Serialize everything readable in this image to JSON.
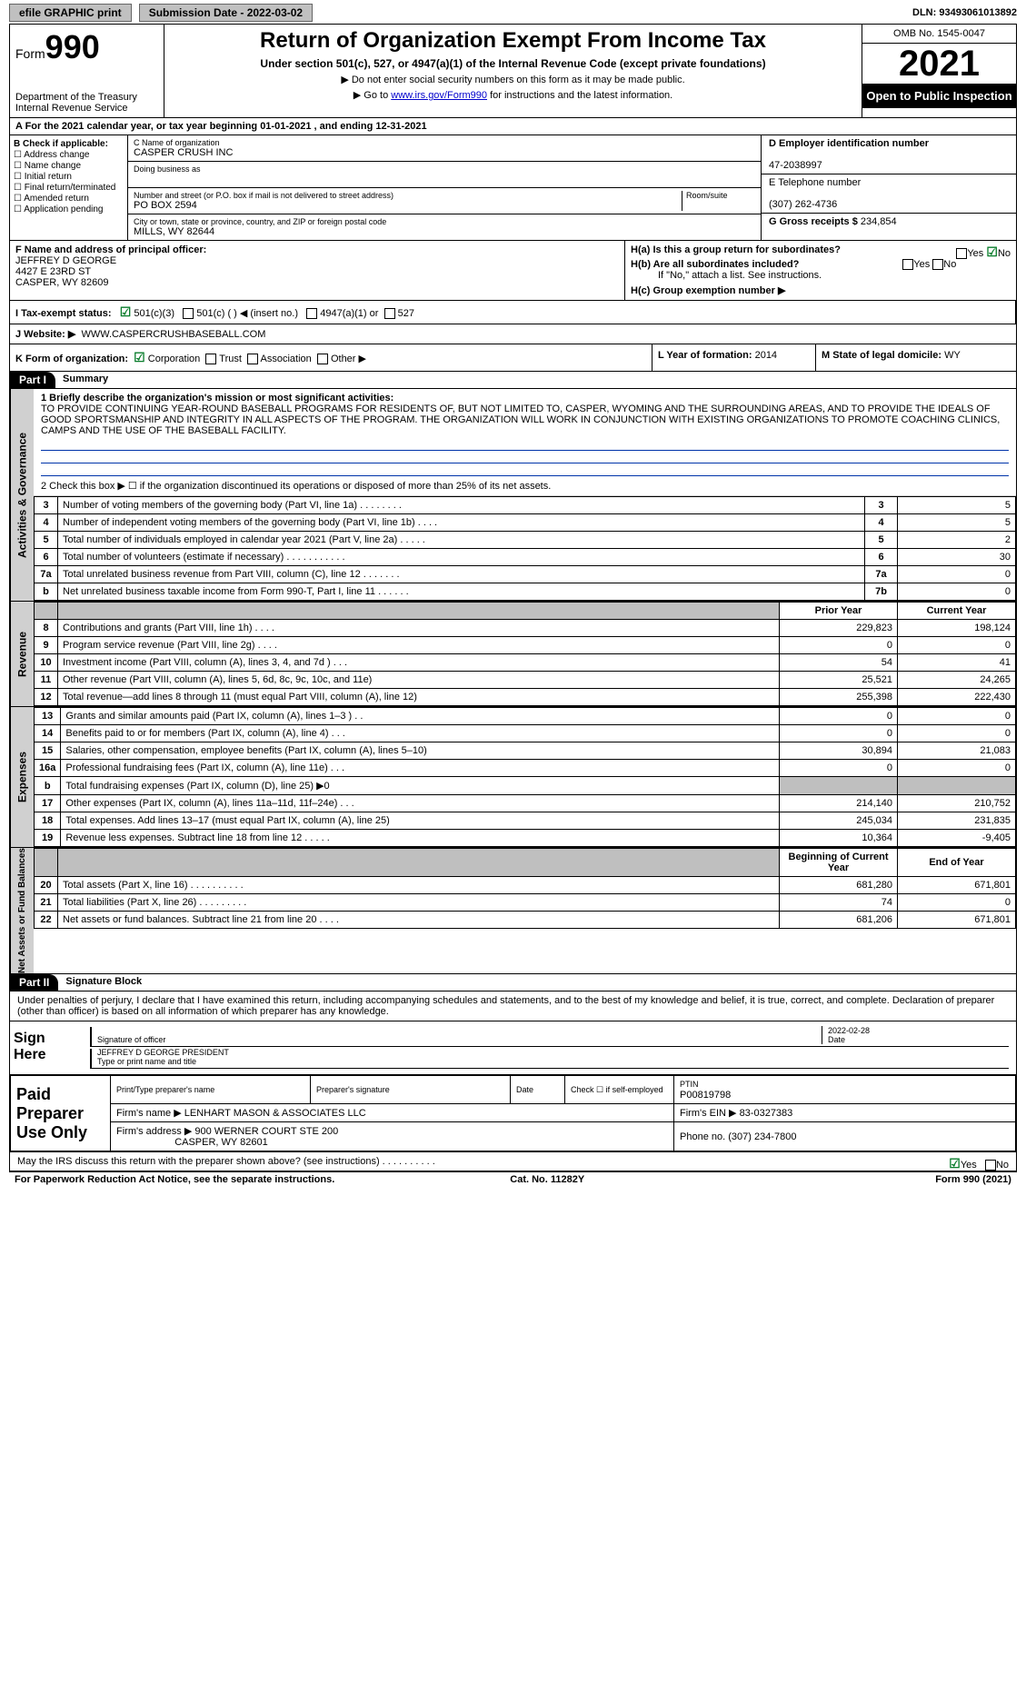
{
  "topbar": {
    "efile": "efile GRAPHIC print",
    "submission": "Submission Date - 2022-03-02",
    "dln": "DLN: 93493061013892"
  },
  "header": {
    "form_word": "Form",
    "form_no": "990",
    "dept": "Department of the Treasury",
    "irs": "Internal Revenue Service",
    "title": "Return of Organization Exempt From Income Tax",
    "subtitle": "Under section 501(c), 527, or 4947(a)(1) of the Internal Revenue Code (except private foundations)",
    "note1": "▶ Do not enter social security numbers on this form as it may be made public.",
    "note2_pre": "▶ Go to ",
    "note2_link": "www.irs.gov/Form990",
    "note2_post": " for instructions and the latest information.",
    "omb": "OMB No. 1545-0047",
    "year": "2021",
    "open": "Open to Public Inspection"
  },
  "rowA": "A For the 2021 calendar year, or tax year beginning 01-01-2021     , and ending 12-31-2021",
  "b": {
    "title": "B Check if applicable:",
    "opts": [
      "Address change",
      "Name change",
      "Initial return",
      "Final return/terminated",
      "Amended return",
      "Application pending"
    ]
  },
  "c": {
    "name_lbl": "C Name of organization",
    "name": "CASPER CRUSH INC",
    "dba_lbl": "Doing business as",
    "addr_lbl": "Number and street (or P.O. box if mail is not delivered to street address)",
    "room_lbl": "Room/suite",
    "addr": "PO BOX 2594",
    "city_lbl": "City or town, state or province, country, and ZIP or foreign postal code",
    "city": "MILLS, WY  82644"
  },
  "d": {
    "ein_lbl": "D Employer identification number",
    "ein": "47-2038997",
    "tel_lbl": "E Telephone number",
    "tel": "(307) 262-4736",
    "gross_lbl": "G Gross receipts $",
    "gross": "234,854"
  },
  "f": {
    "lbl": "F  Name and address of principal officer:",
    "name": "JEFFREY D GEORGE",
    "addr1": "4427 E 23RD ST",
    "addr2": "CASPER, WY  82609"
  },
  "h": {
    "ha": "H(a)  Is this a group return for subordinates?",
    "hb": "H(b)  Are all subordinates included?",
    "hb_note": "If \"No,\" attach a list. See instructions.",
    "hc": "H(c)  Group exemption number ▶",
    "yes": "Yes",
    "no": "No"
  },
  "i": {
    "lbl": "I   Tax-exempt status:",
    "o1": "501(c)(3)",
    "o2": "501(c) (   ) ◀ (insert no.)",
    "o3": "4947(a)(1) or",
    "o4": "527"
  },
  "j": {
    "lbl": "J   Website: ▶",
    "val": "WWW.CASPERCRUSHBASEBALL.COM"
  },
  "k": {
    "lbl": "K Form of organization:",
    "o1": "Corporation",
    "o2": "Trust",
    "o3": "Association",
    "o4": "Other ▶"
  },
  "l": {
    "lbl": "L Year of formation:",
    "val": "2014"
  },
  "m": {
    "lbl": "M State of legal domicile:",
    "val": "WY"
  },
  "part1": {
    "hdr": "Part I",
    "title": "Summary",
    "l1_lbl": "1  Briefly describe the organization's mission or most significant activities:",
    "l1_text": "TO PROVIDE CONTINUING YEAR-ROUND BASEBALL PROGRAMS FOR RESIDENTS OF, BUT NOT LIMITED TO, CASPER, WYOMING AND THE SURROUNDING AREAS, AND TO PROVIDE THE IDEALS OF GOOD SPORTSMANSHIP AND INTEGRITY IN ALL ASPECTS OF THE PROGRAM. THE ORGANIZATION WILL WORK IN CONJUNCTION WITH EXISTING ORGANIZATIONS TO PROMOTE COACHING CLINICS, CAMPS AND THE USE OF THE BASEBALL FACILITY.",
    "l2": "2    Check this box ▶ ☐  if the organization discontinued its operations or disposed of more than 25% of its net assets.",
    "vtab_ag": "Activities & Governance",
    "vtab_rev": "Revenue",
    "vtab_exp": "Expenses",
    "vtab_na": "Net Assets or Fund Balances",
    "rows_ag": [
      {
        "n": "3",
        "lab": "Number of voting members of the governing body (Part VI, line 1a)   .    .    .    .    .    .    .    .",
        "cn": "3",
        "val": "5"
      },
      {
        "n": "4",
        "lab": "Number of independent voting members of the governing body (Part VI, line 1b)    .    .    .    .",
        "cn": "4",
        "val": "5"
      },
      {
        "n": "5",
        "lab": "Total number of individuals employed in calendar year 2021 (Part V, line 2a)   .    .    .    .    .",
        "cn": "5",
        "val": "2"
      },
      {
        "n": "6",
        "lab": "Total number of volunteers (estimate if necessary)   .    .    .    .    .    .    .    .    .    .    .",
        "cn": "6",
        "val": "30"
      },
      {
        "n": "7a",
        "lab": "Total unrelated business revenue from Part VIII, column (C), line 12   .    .    .    .    .    .    .",
        "cn": "7a",
        "val": "0"
      },
      {
        "n": " b",
        "lab": "Net unrelated business taxable income from Form 990-T, Part I, line 11   .    .    .    .    .    .",
        "cn": "7b",
        "val": "0"
      }
    ],
    "col_py": "Prior Year",
    "col_cy": "Current Year",
    "rows_rev": [
      {
        "n": "8",
        "lab": "Contributions and grants (Part VIII, line 1h)   .    .    .    .",
        "py": "229,823",
        "cy": "198,124"
      },
      {
        "n": "9",
        "lab": "Program service revenue (Part VIII, line 2g)   .    .    .    .",
        "py": "0",
        "cy": "0"
      },
      {
        "n": "10",
        "lab": "Investment income (Part VIII, column (A), lines 3, 4, and 7d )   .    .    .",
        "py": "54",
        "cy": "41"
      },
      {
        "n": "11",
        "lab": "Other revenue (Part VIII, column (A), lines 5, 6d, 8c, 9c, 10c, and 11e)",
        "py": "25,521",
        "cy": "24,265"
      },
      {
        "n": "12",
        "lab": "Total revenue—add lines 8 through 11 (must equal Part VIII, column (A), line 12)",
        "py": "255,398",
        "cy": "222,430"
      }
    ],
    "rows_exp": [
      {
        "n": "13",
        "lab": "Grants and similar amounts paid (Part IX, column (A), lines 1–3 )  .    .",
        "py": "0",
        "cy": "0"
      },
      {
        "n": "14",
        "lab": "Benefits paid to or for members (Part IX, column (A), line 4)   .    .    .",
        "py": "0",
        "cy": "0"
      },
      {
        "n": "15",
        "lab": "Salaries, other compensation, employee benefits (Part IX, column (A), lines 5–10)",
        "py": "30,894",
        "cy": "21,083"
      },
      {
        "n": "16a",
        "lab": "Professional fundraising fees (Part IX, column (A), line 11e)   .    .    .",
        "py": "0",
        "cy": "0"
      },
      {
        "n": "  b",
        "lab": "Total fundraising expenses (Part IX, column (D), line 25) ▶0",
        "py": "GRAY",
        "cy": "GRAY"
      },
      {
        "n": "17",
        "lab": "Other expenses (Part IX, column (A), lines 11a–11d, 11f–24e)   .    .    .",
        "py": "214,140",
        "cy": "210,752"
      },
      {
        "n": "18",
        "lab": "Total expenses. Add lines 13–17 (must equal Part IX, column (A), line 25)",
        "py": "245,034",
        "cy": "231,835"
      },
      {
        "n": "19",
        "lab": "Revenue less expenses. Subtract line 18 from line 12  .    .    .    .    .",
        "py": "10,364",
        "cy": "-9,405"
      }
    ],
    "col_boy": "Beginning of Current Year",
    "col_eoy": "End of Year",
    "rows_na": [
      {
        "n": "20",
        "lab": "Total assets (Part X, line 16)   .    .    .    .    .    .    .    .    .    .",
        "py": "681,280",
        "cy": "671,801"
      },
      {
        "n": "21",
        "lab": "Total liabilities (Part X, line 26)   .    .    .    .    .    .    .    .    .",
        "py": "74",
        "cy": "0"
      },
      {
        "n": "22",
        "lab": "Net assets or fund balances. Subtract line 21 from line 20  .    .    .    .",
        "py": "681,206",
        "cy": "671,801"
      }
    ]
  },
  "part2": {
    "hdr": "Part II",
    "title": "Signature Block",
    "decl": "Under penalties of perjury, I declare that I have examined this return, including accompanying schedules and statements, and to the best of my knowledge and belief, it is true, correct, and complete. Declaration of preparer (other than officer) is based on all information of which preparer has any knowledge.",
    "sign": "Sign Here",
    "sig_officer": "Signature of officer",
    "sig_date": "Date",
    "sig_date_val": "2022-02-28",
    "sig_name": "JEFFREY D GEORGE  PRESIDENT",
    "sig_name_lbl": "Type or print name and title",
    "paid": "Paid Preparer Use Only",
    "prep_name_lbl": "Print/Type preparer's name",
    "prep_sig_lbl": "Preparer's signature",
    "prep_date_lbl": "Date",
    "prep_self": "Check ☐ if self-employed",
    "ptin_lbl": "PTIN",
    "ptin": "P00819798",
    "firm_name_lbl": "Firm's name    ▶",
    "firm_name": "LENHART MASON & ASSOCIATES LLC",
    "firm_ein_lbl": "Firm's EIN ▶",
    "firm_ein": "83-0327383",
    "firm_addr_lbl": "Firm's address ▶",
    "firm_addr1": "900 WERNER COURT STE 200",
    "firm_addr2": "CASPER, WY  82601",
    "phone_lbl": "Phone no.",
    "phone": "(307) 234-7800",
    "discuss": "May the IRS discuss this return with the preparer shown above? (see instructions)   .    .    .    .    .    .    .    .    .    .",
    "discuss_yes": "Yes",
    "discuss_no": "No"
  },
  "footer": {
    "pra": "For Paperwork Reduction Act Notice, see the separate instructions.",
    "cat": "Cat. No. 11282Y",
    "form": "Form 990 (2021)"
  }
}
